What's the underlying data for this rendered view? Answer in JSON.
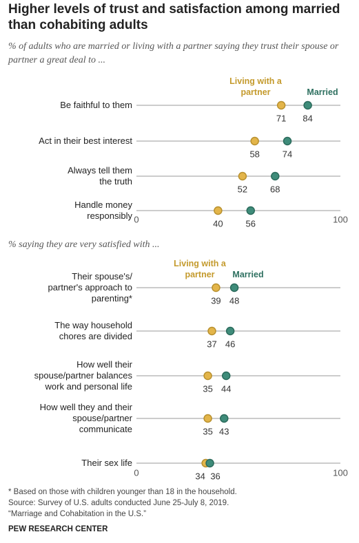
{
  "chart_data": [
    {
      "type": "dot",
      "title": "Higher levels of trust and satisfaction among married than cohabiting adults",
      "subtitle": "% of adults who are married or living with a partner saying they trust their spouse or partner a great deal to ...",
      "categories": [
        "Be faithful to them",
        "Act in their best interest",
        "Always tell them\nthe truth",
        "Handle money\nresponsibly"
      ],
      "series": [
        {
          "name": "Living with a partner",
          "color": "#e3b54a",
          "values": [
            71,
            58,
            52,
            40
          ]
        },
        {
          "name": "Married",
          "color": "#3f8c7a",
          "values": [
            84,
            74,
            68,
            56
          ]
        }
      ],
      "xlim": [
        0,
        100
      ],
      "xticks": [
        0,
        100
      ]
    },
    {
      "type": "dot",
      "subtitle": "% saying they are very satisfied with ...",
      "categories": [
        "Their spouse's/\npartner's approach to\nparenting*",
        "The way household\nchores are divided",
        "How well their\nspouse/partner balances\nwork and personal life",
        "How well they and their\nspouse/partner\ncommunicate",
        "Their sex life"
      ],
      "series": [
        {
          "name": "Living with a partner",
          "color": "#e3b54a",
          "values": [
            39,
            37,
            35,
            35,
            34
          ]
        },
        {
          "name": "Married",
          "color": "#3f8c7a",
          "values": [
            48,
            46,
            44,
            43,
            36
          ]
        }
      ],
      "xlim": [
        0,
        100
      ],
      "xticks": [
        0,
        100
      ]
    }
  ],
  "notes": [
    "* Based on those with children younger than 18 in the household.",
    "Source: Survey of U.S. adults conducted June 25-July 8, 2019.",
    "“Marriage and Cohabitation in the U.S.”"
  ],
  "brand": "PEW RESEARCH CENTER"
}
